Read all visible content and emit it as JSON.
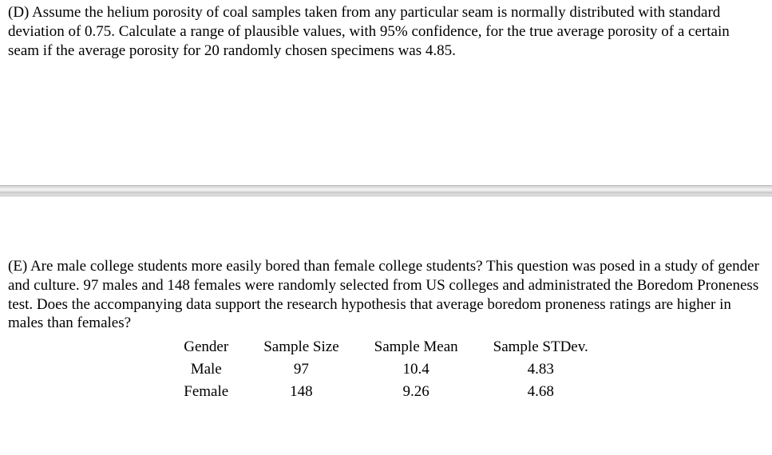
{
  "question_d": {
    "text": "(D) Assume the helium porosity of coal samples taken from any particular seam is normally distributed with standard deviation of 0.75.  Calculate a range of plausible values, with 95% confidence, for the true average porosity of a certain seam if the average porosity for 20 randomly chosen specimens was 4.85."
  },
  "question_e": {
    "text": "(E) Are male college students more easily bored than female college students?  This question was posed in a study of gender and culture.  97 males and 148 females were randomly selected from US colleges and administrated the Boredom Proneness test.  Does the accompanying data support the research hypothesis that average boredom proneness ratings are higher in males than females?",
    "table": {
      "columns": [
        "Gender",
        "Sample Size",
        "Sample Mean",
        "Sample STDev."
      ],
      "rows": [
        [
          "Male",
          "97",
          "10.4",
          "4.83"
        ],
        [
          "Female",
          "148",
          "9.26",
          "4.68"
        ]
      ]
    }
  }
}
